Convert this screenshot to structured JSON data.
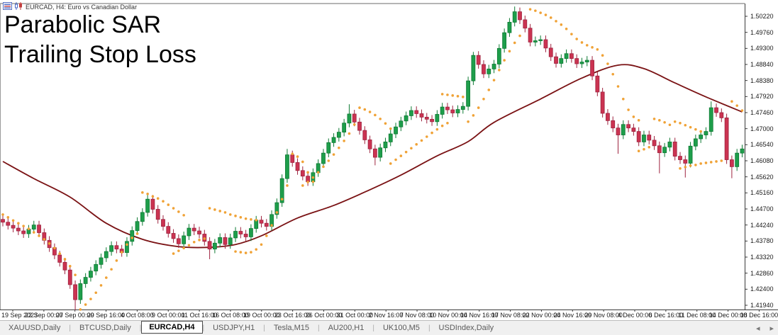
{
  "window": {
    "titlebar": {
      "symbol_title": "EURCAD, H4: Euro vs Canadian Dollar",
      "icons": [
        "chart-list-icon",
        "candlestick-icon"
      ]
    }
  },
  "overlay_title": {
    "line1": "Parabolic SAR",
    "line2": "Trailing Stop Loss"
  },
  "tabs": {
    "items": [
      {
        "label": "XAUUSD,Daily",
        "active": false
      },
      {
        "label": "BTCUSD,Daily",
        "active": false
      },
      {
        "label": "EURCAD,H4",
        "active": true
      },
      {
        "label": "USDJPY,H1",
        "active": false
      },
      {
        "label": "Tesla,M15",
        "active": false
      },
      {
        "label": "AU200,H1",
        "active": false
      },
      {
        "label": "UK100,M5",
        "active": false
      },
      {
        "label": "USDIndex,Daily",
        "active": false
      }
    ],
    "scroll_left": "◂",
    "scroll_right": "▸"
  },
  "axis": {
    "price_labels": [
      "1.50220",
      "1.49760",
      "1.49300",
      "1.48840",
      "1.48380",
      "1.47920",
      "1.47460",
      "1.47000",
      "1.46540",
      "1.46080",
      "1.45620",
      "1.45160",
      "1.44700",
      "1.44240",
      "1.43780",
      "1.43320",
      "1.42860",
      "1.42400",
      "1.41940"
    ],
    "time_labels": [
      "19 Sep 2023",
      "22 Sep 00:00",
      "27 Sep 00:00",
      "29 Sep 16:00",
      "4 Oct 08:00",
      "9 Oct 00:00",
      "11 Oct 16:00",
      "16 Oct 08:00",
      "19 Oct 00:00",
      "23 Oct 16:00",
      "26 Oct 00:00",
      "31 Oct 00:00",
      "2 Nov 16:00",
      "7 Nov 08:00",
      "10 Nov 00:00",
      "14 Nov 16:00",
      "17 Nov 08:00",
      "22 Nov 00:00",
      "24 Nov 16:00",
      "29 Nov 08:00",
      "4 Dec 00:00",
      "6 Dec 16:00",
      "11 Dec 08:00",
      "14 Dec 00:00",
      "18 Dec 16:00"
    ]
  },
  "colors": {
    "up": "#1E9E4B",
    "up_border": "#0E7A33",
    "down": "#CB3351",
    "down_border": "#9E2440",
    "sar": "#F0A236",
    "ma": "#7A1214",
    "chart_border": "#6b6b6b",
    "background": "#FFFFFF"
  },
  "chart_data": {
    "type": "candlestick",
    "symbol": "EURCAD",
    "timeframe": "H4",
    "title": "Parabolic SAR Trailing Stop Loss",
    "price_range": {
      "top_label": 1.5022,
      "step": 0.0046,
      "bottom_label": 1.4194
    },
    "open_first": 1.444,
    "closes": [
      1.4432,
      1.4423,
      1.4415,
      1.4407,
      1.4399,
      1.4412,
      1.4424,
      1.4402,
      1.438,
      1.4359,
      1.4338,
      1.4317,
      1.4295,
      1.4253,
      1.421,
      1.4256,
      1.4274,
      1.4292,
      1.4311,
      1.433,
      1.4348,
      1.4365,
      1.4355,
      1.4345,
      1.4377,
      1.4408,
      1.4434,
      1.446,
      1.4498,
      1.4469,
      1.444,
      1.442,
      1.44,
      1.4385,
      1.437,
      1.4393,
      1.4415,
      1.4407,
      1.4398,
      1.4377,
      1.4355,
      1.4372,
      1.4388,
      1.4368,
      1.4387,
      1.4406,
      1.4398,
      1.439,
      1.4414,
      1.4438,
      1.4429,
      1.442,
      1.4454,
      1.4488,
      1.4557,
      1.4625,
      1.4603,
      1.458,
      1.4564,
      1.4548,
      1.4574,
      1.46,
      1.463,
      1.466,
      1.4675,
      1.469,
      1.4716,
      1.4742,
      1.4719,
      1.4695,
      1.4668,
      1.4642,
      1.4618,
      1.4645,
      1.4662,
      1.4685,
      1.4705,
      1.4722,
      1.4737,
      1.4752,
      1.4743,
      1.4733,
      1.4727,
      1.472,
      1.4741,
      1.4762,
      1.4754,
      1.4745,
      1.4755,
      1.4764,
      1.4837,
      1.491,
      1.4884,
      1.4857,
      1.4871,
      1.4885,
      1.493,
      1.4975,
      1.5005,
      1.5035,
      1.5012,
      1.4988,
      1.4948,
      1.4952,
      1.4955,
      1.4931,
      1.4906,
      1.4887,
      1.4901,
      1.4915,
      1.4901,
      1.4886,
      1.4891,
      1.4896,
      1.4851,
      1.4805,
      1.4744,
      1.4723,
      1.4702,
      1.4682,
      1.4712,
      1.4702,
      1.4692,
      1.4662,
      1.4682,
      1.4667,
      1.4651,
      1.4631,
      1.4647,
      1.4662,
      1.4621,
      1.4611,
      1.4601,
      1.465,
      1.4671,
      1.4682,
      1.4692,
      1.476,
      1.4746,
      1.4731,
      1.4611,
      1.4591,
      1.463,
      1.4642
    ],
    "extremes": {
      "14": {
        "low": 1.418
      },
      "28": {
        "high": 1.4516
      },
      "40": {
        "low": 1.4326
      },
      "55": {
        "high": 1.4642
      },
      "67": {
        "high": 1.477
      },
      "72": {
        "low": 1.4595
      },
      "91": {
        "high": 1.492
      },
      "99": {
        "high": 1.505
      },
      "119": {
        "low": 1.4628
      },
      "127": {
        "low": 1.4572
      },
      "132": {
        "low": 1.456
      },
      "137": {
        "high": 1.4778
      },
      "141": {
        "low": 1.4558
      }
    },
    "overlays": {
      "moving_average": {
        "name": "moving-average-line",
        "points": [
          [
            0,
            1.4606
          ],
          [
            6,
            1.4557
          ],
          [
            13,
            1.4504
          ],
          [
            20,
            1.4429
          ],
          [
            27,
            1.4383
          ],
          [
            34,
            1.4362
          ],
          [
            40,
            1.436
          ],
          [
            45,
            1.4368
          ],
          [
            50,
            1.4393
          ],
          [
            57,
            1.4444
          ],
          [
            64,
            1.448
          ],
          [
            71,
            1.4525
          ],
          [
            77,
            1.4567
          ],
          [
            84,
            1.4622
          ],
          [
            90,
            1.4663
          ],
          [
            95,
            1.4718
          ],
          [
            104,
            1.4785
          ],
          [
            112,
            1.4845
          ],
          [
            119,
            1.4882
          ],
          [
            124,
            1.4872
          ],
          [
            130,
            1.4831
          ],
          [
            136,
            1.4791
          ],
          [
            143,
            1.4748
          ]
        ]
      },
      "parabolic_sar": {
        "name": "parabolic-sar-dots",
        "segments": [
          {
            "start": 0,
            "prices": [
              1.4454,
              1.4446,
              1.4437,
              1.4429,
              1.4421,
              1.4413,
              1.4403,
              1.4393,
              1.4383,
              1.4371,
              1.4358,
              1.4342,
              1.4326,
              1.4306,
              1.4281
            ]
          },
          {
            "start": 15,
            "prices": [
              1.4182,
              1.4196,
              1.4212,
              1.423,
              1.4251,
              1.4273,
              1.4297,
              1.4322,
              1.4346,
              1.4368,
              1.4387,
              1.4399
            ]
          },
          {
            "start": 27,
            "prices": [
              1.4517,
              1.4513,
              1.4506,
              1.45,
              1.4492,
              1.4482,
              1.4472,
              1.4462,
              1.4452
            ]
          },
          {
            "start": 33,
            "prices": [
              1.4342,
              1.435,
              1.4358,
              1.4366,
              1.4375,
              1.4381,
              1.4385
            ]
          },
          {
            "start": 40,
            "prices": [
              1.4472,
              1.4468,
              1.4464,
              1.446,
              1.4454,
              1.445,
              1.4446,
              1.4442,
              1.444,
              1.4438
            ]
          },
          {
            "start": 45,
            "prices": [
              1.4348,
              1.4346,
              1.4344,
              1.4346,
              1.4354,
              1.4368,
              1.4393,
              1.4423,
              1.446,
              1.4498,
              1.4537
            ]
          },
          {
            "start": 56,
            "prices": [
              1.4628,
              1.462,
              1.4605,
              1.4575,
              1.4548
            ]
          },
          {
            "start": 58,
            "prices": [
              1.4537,
              1.4547,
              1.456,
              1.4575,
              1.4591,
              1.4608,
              1.4626,
              1.4645,
              1.4665,
              1.4686,
              1.4712
            ]
          },
          {
            "start": 69,
            "prices": [
              1.476,
              1.4755,
              1.4748,
              1.4739,
              1.4728,
              1.4715,
              1.47
            ]
          },
          {
            "start": 75,
            "prices": [
              1.46,
              1.4611,
              1.4622,
              1.4633,
              1.4644,
              1.4655,
              1.4666,
              1.4677,
              1.4688,
              1.4698,
              1.4708,
              1.4716
            ]
          },
          {
            "start": 85,
            "prices": [
              1.4799,
              1.4797,
              1.4795,
              1.4793,
              1.4791
            ]
          },
          {
            "start": 90,
            "prices": [
              1.472,
              1.4738,
              1.476,
              1.4785,
              1.4811,
              1.4839,
              1.4868,
              1.4896,
              1.4922,
              1.4946,
              1.4966
            ]
          },
          {
            "start": 102,
            "prices": [
              1.5042,
              1.5038,
              1.5032,
              1.5026,
              1.5018,
              1.5008,
              1.4998,
              1.4986,
              1.4971,
              1.4957,
              1.4947,
              1.4939,
              1.4933,
              1.4927,
              1.491,
              1.4886,
              1.4856,
              1.4821,
              1.4785,
              1.4754,
              1.4734,
              1.4724
            ]
          },
          {
            "start": 123,
            "prices": [
              1.4636,
              1.4641,
              1.4647
            ]
          },
          {
            "start": 126,
            "prices": [
              1.4728,
              1.4724,
              1.4718,
              1.4711
            ]
          },
          {
            "start": 130,
            "prices": [
              1.472,
              1.4716,
              1.471,
              1.4704,
              1.4698,
              1.4692
            ]
          },
          {
            "start": 131,
            "prices": [
              1.4586,
              1.459,
              1.4594,
              1.4596,
              1.46,
              1.4602,
              1.4604,
              1.4606,
              1.4608
            ]
          },
          {
            "start": 141,
            "prices": [
              1.4778,
              1.4766,
              1.4752
            ]
          }
        ]
      }
    }
  }
}
